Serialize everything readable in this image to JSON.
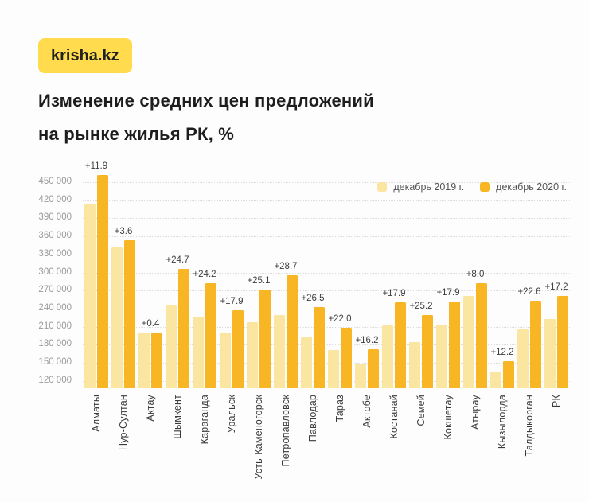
{
  "logo": {
    "text": "krisha.kz",
    "background": "#FFDB4D"
  },
  "title": {
    "line1": "Изменение средних цен предложений",
    "line2": "на рынке жилья РК, %"
  },
  "legend": {
    "position": "top-right",
    "items": [
      {
        "label": "декабрь 2019 г.",
        "color": "#FAE6A1"
      },
      {
        "label": "декабрь 2020 г.",
        "color": "#F8B625"
      }
    ]
  },
  "colors": {
    "background": "#fdfdfd",
    "title_text": "#1d1d1d",
    "axis_text": "#9a9a9a",
    "category_text": "#3b3b3b",
    "grid": "#dcdcdc",
    "series_2019": "#FAE6A1",
    "series_2020": "#F8B625"
  },
  "chart_data": {
    "type": "bar",
    "title": "Изменение средних цен предложений на рынке жилья РК, %",
    "xlabel": "",
    "ylabel": "",
    "grid": "horizontal-dotted",
    "legend_position": "top-right",
    "categories": [
      "Алматы",
      "Нур-Султан",
      "Актау",
      "Шымкент",
      "Караганда",
      "Уральск",
      "Усть-Каменогорск",
      "Петропавловск",
      "Павлодар",
      "Тараз",
      "Актобе",
      "Костанай",
      "Семей",
      "Кокшетау",
      "Атырау",
      "Кызылорда",
      "Талдыкорган",
      "РК"
    ],
    "series": [
      {
        "name": "декабрь 2019 г.",
        "color": "#FAE6A1",
        "values": [
          413000,
          342000,
          200000,
          245000,
          227000,
          201000,
          217000,
          229000,
          192000,
          171000,
          149000,
          212000,
          184000,
          214000,
          261000,
          136000,
          206000,
          223000
        ]
      },
      {
        "name": "декабрь 2020 г.",
        "color": "#F8B625",
        "values": [
          462000,
          354000,
          201000,
          306000,
          282000,
          237000,
          272000,
          295000,
          243000,
          209000,
          173000,
          250000,
          230000,
          252000,
          282000,
          153000,
          253000,
          261000
        ]
      }
    ],
    "change_labels": [
      "+11.9",
      "+3.6",
      "+0.4",
      "+24.7",
      "+24.2",
      "+17.9",
      "+25.1",
      "+28.7",
      "+26.5",
      "+22.0",
      "+16.2",
      "+17.9",
      "+25.2",
      "+17.9",
      "+8.0",
      "+12.2",
      "+22.6",
      "+17.2"
    ],
    "y_ticks": [
      "450 000",
      "420 000",
      "390 000",
      "360 000",
      "330 000",
      "300 000",
      "270 000",
      "240 000",
      "210 000",
      "180 000",
      "150 000",
      "120 000"
    ],
    "y_tick_values": [
      450000,
      420000,
      390000,
      360000,
      330000,
      300000,
      270000,
      240000,
      210000,
      180000,
      150000,
      120000
    ],
    "ylim": [
      108000,
      491000
    ]
  }
}
